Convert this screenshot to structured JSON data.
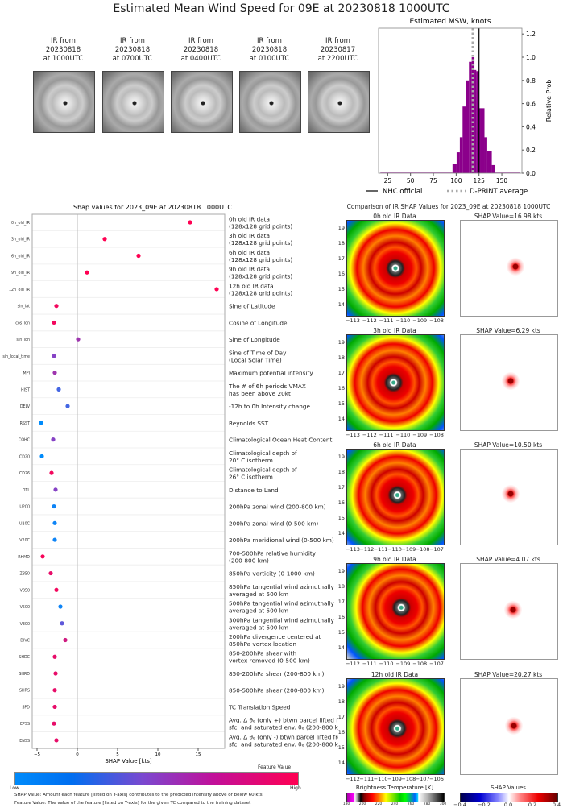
{
  "title": "Estimated Mean Wind Speed for 09E at 20230818 1000UTC",
  "thumbnails": [
    {
      "lines": [
        "IR from",
        "20230818",
        "at 1000UTC"
      ]
    },
    {
      "lines": [
        "IR from",
        "20230818",
        "at 0700UTC"
      ]
    },
    {
      "lines": [
        "IR from",
        "20230818",
        "at 0400UTC"
      ]
    },
    {
      "lines": [
        "IR from",
        "20230818",
        "at 0100UTC"
      ]
    },
    {
      "lines": [
        "IR from",
        "20230817",
        "at 2200UTC"
      ]
    }
  ],
  "chart_data": [
    {
      "type": "bar",
      "title": "Estimated MSW, knots",
      "ylabel": "Relative Prob",
      "xlim": [
        15,
        172
      ],
      "ylim": [
        0,
        1.25
      ],
      "xticks": [
        25,
        50,
        75,
        100,
        125,
        150
      ],
      "yticks": [
        "0.0",
        "0.2",
        "0.4",
        "0.6",
        "0.8",
        "1.0",
        "1.2"
      ],
      "bin_edges": [
        17,
        96,
        100.5,
        104,
        107,
        111,
        114,
        117,
        120,
        122,
        125,
        127,
        131,
        134,
        139,
        142.5,
        170
      ],
      "values": [
        0.005,
        0.08,
        0.18,
        0.31,
        0.575,
        0.8,
        0.96,
        1.0,
        0.89,
        0.88,
        0.56,
        0.56,
        0.31,
        0.19,
        0.07,
        0.005
      ],
      "bar_color": "#8b008b",
      "nhc_official": 125,
      "dprint_average": 118,
      "legend": [
        {
          "label": "NHC official",
          "style": "solid",
          "color": "#000000"
        },
        {
          "label": "D-PRINT average",
          "style": "dotted",
          "color": "#aaaaaa"
        }
      ],
      "legend_placement": "bottom"
    },
    {
      "type": "scatter",
      "title": "Shap values for 2023_09E at 20230818 1000UTC",
      "xlabel": "SHAP Value [kts]",
      "xlim": [
        -5.6,
        18.3
      ],
      "xticks": [
        -5,
        0,
        5,
        10,
        15
      ],
      "features": [
        {
          "name": "0h_old_IR",
          "desc": [
            "0h old IR data",
            "(128x128 grid points)"
          ],
          "shap": 14.0,
          "fv": 1.0
        },
        {
          "name": "3h_old_IR",
          "desc": [
            "3h old IR data",
            "(128x128 grid points)"
          ],
          "shap": 3.4,
          "fv": 1.0
        },
        {
          "name": "6h_old_IR",
          "desc": [
            "6h old IR data",
            "(128x128 grid points)"
          ],
          "shap": 7.6,
          "fv": 1.0
        },
        {
          "name": "9h_old_IR",
          "desc": [
            "9h old IR data",
            "(128x128 grid points)"
          ],
          "shap": 1.2,
          "fv": 1.0
        },
        {
          "name": "12h_old_IR",
          "desc": [
            "12h old IR data",
            "(128x128 grid points)"
          ],
          "shap": 17.3,
          "fv": 1.0
        },
        {
          "name": "sin_lat",
          "desc": [
            "Sine of Latitude"
          ],
          "shap": -2.6,
          "fv": 0.95
        },
        {
          "name": "cos_lon",
          "desc": [
            "Cosine of Longitude"
          ],
          "shap": -2.9,
          "fv": 0.95
        },
        {
          "name": "sin_lon",
          "desc": [
            "Sine of Longitude"
          ],
          "shap": 0.1,
          "fv": 0.6
        },
        {
          "name": "sin_local_time",
          "desc": [
            "Sine of Time of Day",
            "(Local Solar Time)"
          ],
          "shap": -2.9,
          "fv": 0.5
        },
        {
          "name": "MPI",
          "desc": [
            "Maximum potential intensity"
          ],
          "shap": -2.8,
          "fv": 0.6
        },
        {
          "name": "HIST",
          "desc": [
            "The # of 6h periods VMAX",
            "has been above 20kt"
          ],
          "shap": -2.3,
          "fv": 0.25
        },
        {
          "name": "DELV",
          "desc": [
            "-12h to 0h Intensity change"
          ],
          "shap": -1.2,
          "fv": 0.25
        },
        {
          "name": "RSST",
          "desc": [
            "Reynolds SST"
          ],
          "shap": -4.5,
          "fv": 0.0
        },
        {
          "name": "COHC",
          "desc": [
            "Climatological Ocean Heat Content"
          ],
          "shap": -3.0,
          "fv": 0.5
        },
        {
          "name": "CD20",
          "desc": [
            "Climatological depth of",
            "20° C isotherm"
          ],
          "shap": -4.4,
          "fv": 0.0
        },
        {
          "name": "CD26",
          "desc": [
            "Climatological depth of",
            "26° C isotherm"
          ],
          "shap": -3.2,
          "fv": 0.95
        },
        {
          "name": "DTL",
          "desc": [
            "Distance to Land"
          ],
          "shap": -2.7,
          "fv": 0.5
        },
        {
          "name": "U200",
          "desc": [
            "200hPa zonal wind (200-800 km)"
          ],
          "shap": -2.9,
          "fv": 0.05
        },
        {
          "name": "U20C",
          "desc": [
            "200hPa zonal wind (0-500 km)"
          ],
          "shap": -2.8,
          "fv": 0.05
        },
        {
          "name": "V20C",
          "desc": [
            "200hPa meridional wind (0-500 km)"
          ],
          "shap": -2.8,
          "fv": 0.05
        },
        {
          "name": "RHMD",
          "desc": [
            "700-500hPa relative humidity",
            "(200-800 km)"
          ],
          "shap": -4.3,
          "fv": 0.97
        },
        {
          "name": "Z850",
          "desc": [
            "850hPa vorticity (0-1000 km)"
          ],
          "shap": -3.3,
          "fv": 0.9
        },
        {
          "name": "V850",
          "desc": [
            "850hPa tangential wind azimuthally",
            "averaged at 500 km"
          ],
          "shap": -2.6,
          "fv": 0.95
        },
        {
          "name": "V500",
          "desc": [
            "500hPa tangential wind azimuthally",
            "averaged at 500 km"
          ],
          "shap": -2.1,
          "fv": 0.05
        },
        {
          "name": "V300",
          "desc": [
            "300hPa tangential wind azimuthally",
            "averaged at 500 km"
          ],
          "shap": -1.9,
          "fv": 0.35
        },
        {
          "name": "DIVC",
          "desc": [
            "200hPa divergence centered at",
            "850hPa vortex location"
          ],
          "shap": -1.5,
          "fv": 0.8
        },
        {
          "name": "SHDC",
          "desc": [
            "850-200hPa shear with",
            "vortex removed (0-500 km)"
          ],
          "shap": -2.8,
          "fv": 0.9
        },
        {
          "name": "SHRD",
          "desc": [
            "850-200hPa shear (200-800 km)"
          ],
          "shap": -2.7,
          "fv": 0.9
        },
        {
          "name": "SHRS",
          "desc": [
            "850-500hPa shear (200-800 km)"
          ],
          "shap": -2.8,
          "fv": 0.9
        },
        {
          "name": "SPD",
          "desc": [
            "TC Translation Speed"
          ],
          "shap": -2.8,
          "fv": 0.9
        },
        {
          "name": "EPSS",
          "desc": [
            "Avg. Δ θₑ (only +) btwn parcel lifted from",
            "sfc. and saturated env. θₑ (200-800 km)"
          ],
          "shap": -2.9,
          "fv": 0.9
        },
        {
          "name": "ENSS",
          "desc": [
            "Avg. Δ θₑ (only -) btwn parcel lifted from",
            "sfc. and saturated env. θₑ (200-800 km)"
          ],
          "shap": -2.6,
          "fv": 0.9
        }
      ],
      "colorbar": {
        "title": "Feature Value",
        "low": "Low",
        "high": "High",
        "colors": [
          "#008bfb",
          "#7a49d0",
          "#ff0052"
        ]
      }
    }
  ],
  "footer": [
    "SHAP Value: Amount each feature [listed on Y-axis] contributes to the predicted intensity above or below 60 kts",
    "Feature Value: The value of the feature [listed on Y-axis] for the given TC compared to the training dataset"
  ],
  "ir_compare": {
    "title": "Comparison of IR SHAP Values for 2023_09E at 20230818 1000UTC",
    "yticks": [
      "19",
      "18",
      "17",
      "16",
      "15",
      "14"
    ],
    "rows": [
      {
        "ir_title": "0h old IR Data",
        "shap_title": "SHAP Value=16.98 kts",
        "xticks": [
          "−113",
          "−112",
          "−111",
          "−110",
          "−109",
          "−108"
        ]
      },
      {
        "ir_title": "3h old IR Data",
        "shap_title": "SHAP Value=6.29 kts",
        "xticks": [
          "−113",
          "−112",
          "−111",
          "−110",
          "−109",
          "−108"
        ]
      },
      {
        "ir_title": "6h old IR Data",
        "shap_title": "SHAP Value=10.50 kts",
        "xticks": [
          "−113",
          "−112",
          "−111",
          "−110",
          "−109",
          "−108",
          "−107"
        ]
      },
      {
        "ir_title": "9h old IR Data",
        "shap_title": "SHAP Value=4.07 kts",
        "xticks": [
          "−112",
          "−111",
          "−110",
          "−109",
          "−108",
          "−107"
        ]
      },
      {
        "ir_title": "12h old IR Data",
        "shap_title": "SHAP Value=20.27 kts",
        "xticks": [
          "−112",
          "−111",
          "−110",
          "−109",
          "−108",
          "−107",
          "−106"
        ]
      }
    ],
    "bt_colorbar": {
      "title": "Brightness Temperature [K]",
      "ticks": [
        "180",
        "200",
        "220",
        "240",
        "260",
        "280",
        "300"
      ]
    },
    "shap_colorbar": {
      "title": "SHAP Values",
      "ticks": [
        "−0.4",
        "−0.2",
        "0.0",
        "0.2",
        "0.4"
      ]
    }
  }
}
